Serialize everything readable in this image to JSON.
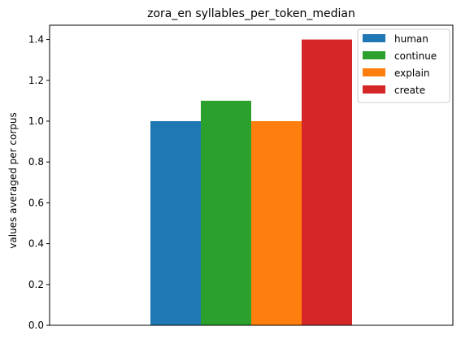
{
  "chart_data": {
    "type": "bar",
    "title": "zora_en syllables_per_token_median",
    "xlabel": "",
    "ylabel": "values averaged per corpus",
    "ylim": [
      0,
      1.47
    ],
    "yticks": [
      "0.0",
      "0.2",
      "0.4",
      "0.6",
      "0.8",
      "1.0",
      "1.2",
      "1.4"
    ],
    "categories": [
      ""
    ],
    "series": [
      {
        "name": "human",
        "values": [
          1.0
        ],
        "color": "#1f77b4"
      },
      {
        "name": "continue",
        "values": [
          1.1
        ],
        "color": "#2ca02c"
      },
      {
        "name": "explain",
        "values": [
          1.0
        ],
        "color": "#ff7f0e"
      },
      {
        "name": "create",
        "values": [
          1.4
        ],
        "color": "#d62728"
      }
    ],
    "grid": false,
    "legend_position": "top-right"
  }
}
